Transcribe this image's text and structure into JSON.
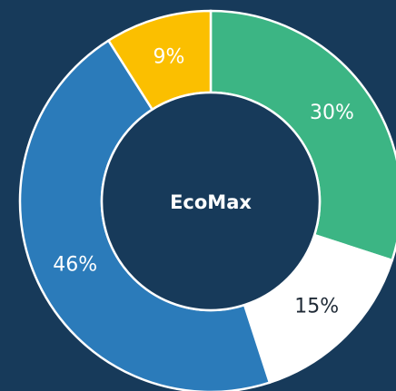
{
  "chart_data": {
    "type": "donut",
    "center_label": "EcoMax",
    "values": [
      30,
      15,
      46,
      9
    ],
    "value_labels": [
      "30%",
      "15%",
      "46%",
      "9%"
    ],
    "colors": [
      "#3cb584",
      "#ffffff",
      "#2b7bba",
      "#fbbf00"
    ],
    "background": "#173a5a"
  }
}
